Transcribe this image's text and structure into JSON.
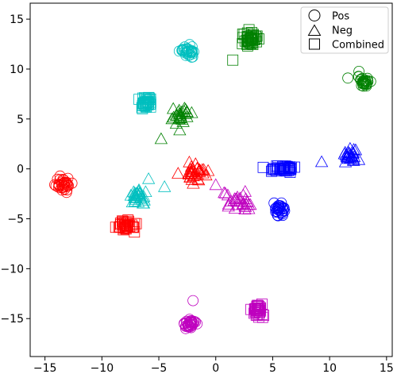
{
  "chart_data": {
    "type": "scatter",
    "title": "",
    "xlabel": "",
    "ylabel": "",
    "xlim": [
      -16.3,
      15.5
    ],
    "ylim": [
      -18.8,
      16.6
    ],
    "xticks": [
      -15,
      -10,
      -5,
      0,
      5,
      10,
      15
    ],
    "xtick_labels": [
      "−15",
      "−10",
      "−5",
      "0",
      "5",
      "10",
      "15"
    ],
    "yticks": [
      -15,
      -10,
      -5,
      0,
      5,
      10,
      15
    ],
    "ytick_labels": [
      "−15",
      "−10",
      "−5",
      "0",
      "5",
      "10",
      "15"
    ],
    "grid": false,
    "legend": {
      "placement": "top-right",
      "entries": [
        {
          "label": "Pos",
          "marker": "circle"
        },
        {
          "label": "Neg",
          "marker": "triangle"
        },
        {
          "label": "Combined",
          "marker": "square"
        }
      ]
    },
    "colors": {
      "red": "#ff0000",
      "cyan": "#00bfbf",
      "green": "#008000",
      "blue": "#0000ff",
      "magenta": "#bf00bf"
    },
    "clusters": [
      {
        "marker": "circle",
        "color": "red",
        "center": [
          -13.4,
          -1.5
        ],
        "spread": [
          0.6,
          0.75
        ],
        "count": 32
      },
      {
        "marker": "square",
        "color": "red",
        "center": [
          -7.8,
          -5.7
        ],
        "spread": [
          0.8,
          0.45
        ],
        "count": 40
      },
      {
        "marker": "triangle",
        "color": "red",
        "center": [
          -1.8,
          -0.3
        ],
        "spread": [
          1.0,
          0.75
        ],
        "count": 35
      },
      {
        "marker": "triangle",
        "color": "cyan",
        "center": [
          -7.0,
          -2.8
        ],
        "spread": [
          1.0,
          0.65
        ],
        "count": 28
      },
      {
        "marker": "square",
        "color": "cyan",
        "center": [
          -6.0,
          6.6
        ],
        "spread": [
          0.6,
          0.55
        ],
        "count": 35
      },
      {
        "marker": "circle",
        "color": "cyan",
        "center": [
          -2.4,
          11.8
        ],
        "spread": [
          0.6,
          0.55
        ],
        "count": 32
      },
      {
        "marker": "triangle",
        "color": "green",
        "center": [
          -3.1,
          5.3
        ],
        "spread": [
          0.75,
          0.8
        ],
        "count": 28
      },
      {
        "marker": "square",
        "color": "green",
        "center": [
          3.1,
          13.0
        ],
        "spread": [
          0.55,
          0.75
        ],
        "count": 42
      },
      {
        "marker": "circle",
        "color": "green",
        "center": [
          13.0,
          8.7
        ],
        "spread": [
          0.5,
          0.55
        ],
        "count": 30
      },
      {
        "marker": "triangle",
        "color": "magenta",
        "center": [
          2.0,
          -3.3
        ],
        "spread": [
          1.0,
          0.75
        ],
        "count": 30
      },
      {
        "marker": "circle",
        "color": "magenta",
        "center": [
          -2.3,
          -15.5
        ],
        "spread": [
          0.5,
          0.55
        ],
        "count": 32
      },
      {
        "marker": "square",
        "color": "magenta",
        "center": [
          3.6,
          -14.2
        ],
        "spread": [
          0.55,
          0.6
        ],
        "count": 35
      },
      {
        "marker": "circle",
        "color": "blue",
        "center": [
          5.7,
          -4.1
        ],
        "spread": [
          0.5,
          0.5
        ],
        "count": 30
      },
      {
        "marker": "square",
        "color": "blue",
        "center": [
          6.0,
          0.0
        ],
        "spread": [
          1.0,
          0.3
        ],
        "count": 42
      },
      {
        "marker": "triangle",
        "color": "blue",
        "center": [
          11.8,
          1.3
        ],
        "spread": [
          0.6,
          0.7
        ],
        "count": 26
      }
    ],
    "outliers": [
      {
        "marker": "square",
        "color": "green",
        "x": 1.5,
        "y": 10.9
      },
      {
        "marker": "circle",
        "color": "green",
        "x": 11.6,
        "y": 9.1
      },
      {
        "marker": "triangle",
        "color": "blue",
        "x": 9.3,
        "y": 0.7
      },
      {
        "marker": "triangle",
        "color": "cyan",
        "x": -4.5,
        "y": -1.8
      },
      {
        "marker": "triangle",
        "color": "cyan",
        "x": -5.9,
        "y": -1.0
      },
      {
        "marker": "triangle",
        "color": "magenta",
        "x": 0.0,
        "y": -1.6
      },
      {
        "marker": "circle",
        "color": "magenta",
        "x": -2.0,
        "y": -13.2
      },
      {
        "marker": "triangle",
        "color": "green",
        "x": -4.8,
        "y": 3.0
      }
    ]
  }
}
